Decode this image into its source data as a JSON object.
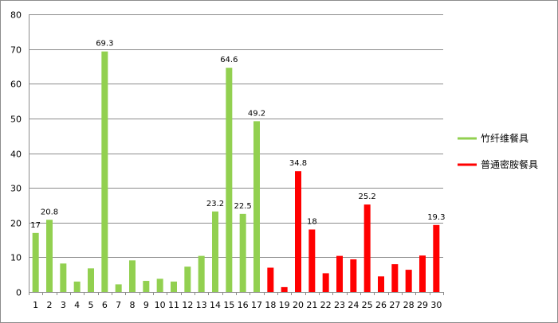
{
  "chart_data": {
    "type": "bar",
    "title": "",
    "xlabel": "",
    "ylabel": "",
    "ylim": [
      0,
      80
    ],
    "yticks": [
      0,
      10,
      20,
      30,
      40,
      50,
      60,
      70,
      80
    ],
    "grid": "horizontal",
    "legend_position": "right",
    "categories": [
      "1",
      "2",
      "3",
      "4",
      "5",
      "6",
      "7",
      "8",
      "9",
      "10",
      "11",
      "12",
      "13",
      "14",
      "15",
      "16",
      "17",
      "18",
      "19",
      "20",
      "21",
      "22",
      "23",
      "24",
      "25",
      "26",
      "27",
      "28",
      "29",
      "30"
    ],
    "series": [
      {
        "name": "竹纤维餐具",
        "color": "#92d050",
        "values": [
          17,
          20.8,
          8.2,
          3,
          6.8,
          69.3,
          2.2,
          9.1,
          3.2,
          3.8,
          3,
          7.3,
          10.4,
          23.2,
          64.6,
          22.5,
          49.2,
          null,
          null,
          null,
          null,
          null,
          null,
          null,
          null,
          null,
          null,
          null,
          null,
          null
        ],
        "labels": [
          "17",
          "20.8",
          "",
          "",
          "",
          "69.3",
          "",
          "",
          "",
          "",
          "",
          "",
          "",
          "23.2",
          "64.6",
          "22.5",
          "49.2",
          "",
          "",
          "",
          "",
          "",
          "",
          "",
          "",
          "",
          "",
          "",
          "",
          ""
        ]
      },
      {
        "name": "普通密胺餐具",
        "color": "#ff0000",
        "values": [
          null,
          null,
          null,
          null,
          null,
          null,
          null,
          null,
          null,
          null,
          null,
          null,
          null,
          null,
          null,
          null,
          null,
          7,
          1.4,
          34.8,
          18,
          5.4,
          10.4,
          9.4,
          25.2,
          4.5,
          8,
          6.4,
          10.5,
          19.3
        ],
        "labels": [
          "",
          "",
          "",
          "",
          "",
          "",
          "",
          "",
          "",
          "",
          "",
          "",
          "",
          "",
          "",
          "",
          "",
          "",
          "",
          "34.8",
          "18",
          "",
          "",
          "",
          "25.2",
          "",
          "",
          "",
          "",
          "19.3"
        ]
      }
    ]
  }
}
